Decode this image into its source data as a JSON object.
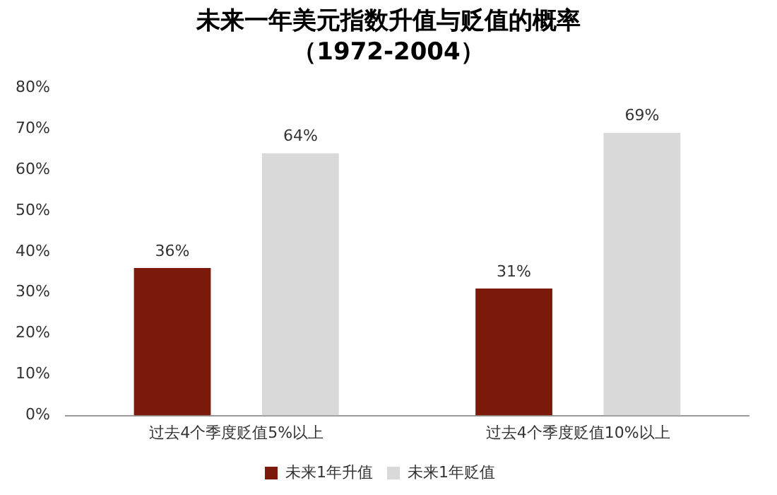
{
  "chart_data": {
    "type": "bar",
    "title": "未来一年美元指数升值与贬值的概率",
    "subtitle": "（1972-2004）",
    "categories": [
      "过去4个季度贬值5%以上",
      "过去4个季度贬值10%以上"
    ],
    "series": [
      {
        "name": "未来1年升值",
        "color": "#7b1a0b",
        "values": [
          36,
          31
        ],
        "value_labels": [
          "36%",
          "31%"
        ]
      },
      {
        "name": "未来1年贬值",
        "color": "#d9d9d9",
        "values": [
          64,
          69
        ],
        "value_labels": [
          "64%",
          "69%"
        ]
      }
    ],
    "ylim": [
      0,
      80
    ],
    "yticks": [
      {
        "value": 0,
        "label": "0%"
      },
      {
        "value": 10,
        "label": "10%"
      },
      {
        "value": 20,
        "label": "20%"
      },
      {
        "value": 30,
        "label": "30%"
      },
      {
        "value": 40,
        "label": "40%"
      },
      {
        "value": 50,
        "label": "50%"
      },
      {
        "value": 60,
        "label": "60%"
      },
      {
        "value": 70,
        "label": "70%"
      },
      {
        "value": 80,
        "label": "80%"
      }
    ],
    "grid": false,
    "legend": "bottom"
  }
}
